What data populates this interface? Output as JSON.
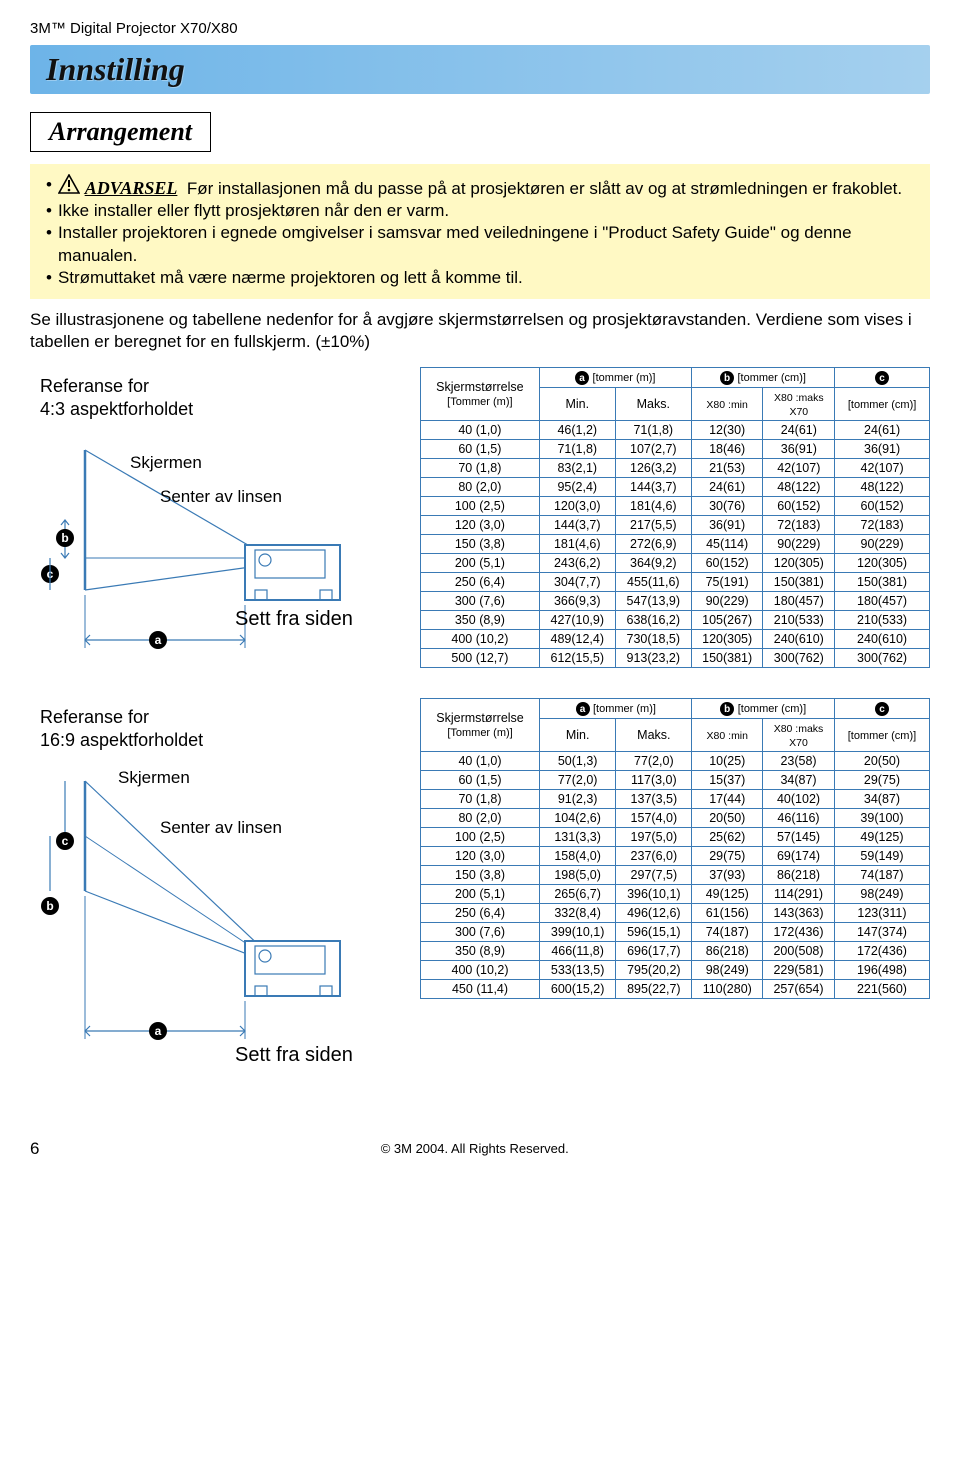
{
  "product_header": "3M™ Digital Projector X70/X80",
  "title": "Innstilling",
  "section": "Arrangement",
  "warning": {
    "label": "ADVARSEL",
    "bullets": [
      "Før installasjonen må du passe på at prosjektøren er slått av og at strømledningen er frakoblet.",
      "Ikke installer eller flytt prosjektøren når den er varm.",
      "Installer projektoren i egnede omgivelser i samsvar med veiledningene i \"Product Safety Guide\" og denne manualen.",
      "Strømuttaket må være nærme projektoren og lett å komme til."
    ]
  },
  "instruction": "Se illustrasjonene og tabellene nedenfor for å avgjøre skjermstørrelsen og prosjektøravstanden. Verdiene som vises i tabellen er beregnet for en fullskjerm. (±10%)",
  "ref43": "Referanse for\n4:3 aspektforholdet",
  "ref169": "Referanse for\n16:9 aspektforholdet",
  "diagram": {
    "screen_label": "Skjermen",
    "lens_label": "Senter av linsen",
    "side_label": "Sett fra siden",
    "marker_a": "a",
    "marker_b": "b",
    "marker_c": "c",
    "stroke": "#3a7ab5"
  },
  "table_headers": {
    "size": "Skjermstørrelse",
    "size_sub": "[Tommer (m)]",
    "a": "a",
    "a_unit": "[tommer (m)]",
    "b": "b",
    "b_unit": "[tommer (cm)]",
    "c": "c",
    "c_sub": "[tommer (cm)]",
    "min": "Min.",
    "maks": "Maks.",
    "x80min": "X80 :min",
    "x80maks": "X80 :maks",
    "x70": "X70"
  },
  "table43": {
    "rows": [
      [
        "40 (1,0)",
        "46(1,2)",
        "71(1,8)",
        "12(30)",
        "24(61)",
        "24(61)"
      ],
      [
        "60 (1,5)",
        "71(1,8)",
        "107(2,7)",
        "18(46)",
        "36(91)",
        "36(91)"
      ],
      [
        "70 (1,8)",
        "83(2,1)",
        "126(3,2)",
        "21(53)",
        "42(107)",
        "42(107)"
      ],
      [
        "80 (2,0)",
        "95(2,4)",
        "144(3,7)",
        "24(61)",
        "48(122)",
        "48(122)"
      ],
      [
        "100 (2,5)",
        "120(3,0)",
        "181(4,6)",
        "30(76)",
        "60(152)",
        "60(152)"
      ],
      [
        "120 (3,0)",
        "144(3,7)",
        "217(5,5)",
        "36(91)",
        "72(183)",
        "72(183)"
      ],
      [
        "150 (3,8)",
        "181(4,6)",
        "272(6,9)",
        "45(114)",
        "90(229)",
        "90(229)"
      ],
      [
        "200 (5,1)",
        "243(6,2)",
        "364(9,2)",
        "60(152)",
        "120(305)",
        "120(305)"
      ],
      [
        "250 (6,4)",
        "304(7,7)",
        "455(11,6)",
        "75(191)",
        "150(381)",
        "150(381)"
      ],
      [
        "300 (7,6)",
        "366(9,3)",
        "547(13,9)",
        "90(229)",
        "180(457)",
        "180(457)"
      ],
      [
        "350 (8,9)",
        "427(10,9)",
        "638(16,2)",
        "105(267)",
        "210(533)",
        "210(533)"
      ],
      [
        "400 (10,2)",
        "489(12,4)",
        "730(18,5)",
        "120(305)",
        "240(610)",
        "240(610)"
      ],
      [
        "500 (12,7)",
        "612(15,5)",
        "913(23,2)",
        "150(381)",
        "300(762)",
        "300(762)"
      ]
    ]
  },
  "table169": {
    "rows": [
      [
        "40 (1,0)",
        "50(1,3)",
        "77(2,0)",
        "10(25)",
        "23(58)",
        "20(50)"
      ],
      [
        "60 (1,5)",
        "77(2,0)",
        "117(3,0)",
        "15(37)",
        "34(87)",
        "29(75)"
      ],
      [
        "70 (1,8)",
        "91(2,3)",
        "137(3,5)",
        "17(44)",
        "40(102)",
        "34(87)"
      ],
      [
        "80 (2,0)",
        "104(2,6)",
        "157(4,0)",
        "20(50)",
        "46(116)",
        "39(100)"
      ],
      [
        "100 (2,5)",
        "131(3,3)",
        "197(5,0)",
        "25(62)",
        "57(145)",
        "49(125)"
      ],
      [
        "120 (3,0)",
        "158(4,0)",
        "237(6,0)",
        "29(75)",
        "69(174)",
        "59(149)"
      ],
      [
        "150 (3,8)",
        "198(5,0)",
        "297(7,5)",
        "37(93)",
        "86(218)",
        "74(187)"
      ],
      [
        "200 (5,1)",
        "265(6,7)",
        "396(10,1)",
        "49(125)",
        "114(291)",
        "98(249)"
      ],
      [
        "250 (6,4)",
        "332(8,4)",
        "496(12,6)",
        "61(156)",
        "143(363)",
        "123(311)"
      ],
      [
        "300 (7,6)",
        "399(10,1)",
        "596(15,1)",
        "74(187)",
        "172(436)",
        "147(374)"
      ],
      [
        "350 (8,9)",
        "466(11,8)",
        "696(17,7)",
        "86(218)",
        "200(508)",
        "172(436)"
      ],
      [
        "400 (10,2)",
        "533(13,5)",
        "795(20,2)",
        "98(249)",
        "229(581)",
        "196(498)"
      ],
      [
        "450 (11,4)",
        "600(15,2)",
        "895(22,7)",
        "110(280)",
        "257(654)",
        "221(560)"
      ]
    ]
  },
  "footer": {
    "page": "6",
    "copyright": "© 3M 2004.  All Rights Reserved."
  }
}
